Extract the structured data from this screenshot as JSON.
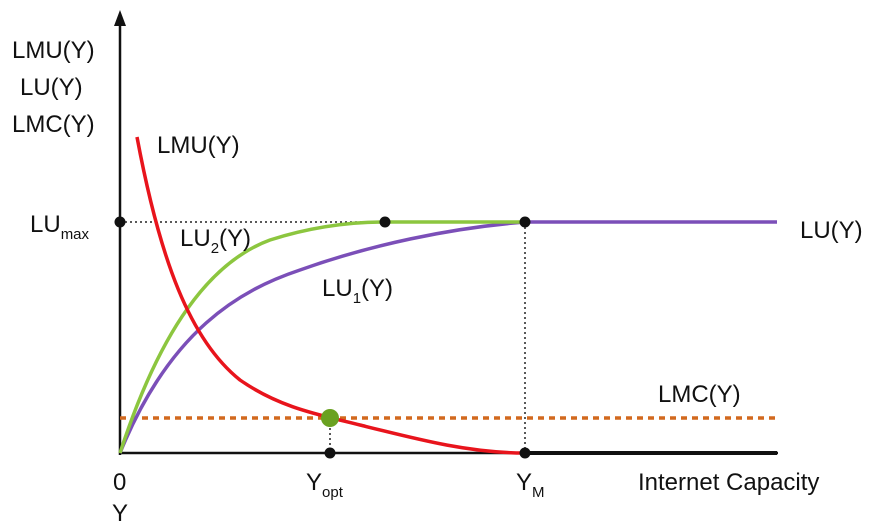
{
  "chart_data": {
    "type": "line",
    "y_axis_labels": [
      "LMU(Y)",
      "LU(Y)",
      "LMC(Y)"
    ],
    "x_axis_label": "Internet Capacity",
    "x_ticks": {
      "origin": "0",
      "origin_sub": "Y",
      "opt_main": "Y",
      "opt_sub": "opt",
      "m_main": "Y",
      "m_sub": "M"
    },
    "y_ticks": {
      "max_main": "LU",
      "max_sub": "max"
    },
    "curve_labels": {
      "lmu": "LMU(Y)",
      "lu": "LU(Y)",
      "lmc": "LMC(Y)",
      "lu1_main": "LU",
      "lu1_sub": "1",
      "lu1_tail": "(Y)",
      "lu2_main": "LU",
      "lu2_sub": "2",
      "lu2_tail": "(Y)"
    },
    "series": [
      {
        "name": "LMU(Y)",
        "color": "#e8141c"
      },
      {
        "name": "LU1(Y)",
        "color": "#7b4fb8"
      },
      {
        "name": "LU2(Y)",
        "color": "#8cc63f"
      },
      {
        "name": "LMC(Y)",
        "color": "#d2691e",
        "style": "dotted"
      }
    ],
    "colors": {
      "axis": "#111111",
      "opt_point": "#6aa121",
      "guide": "#222222"
    }
  }
}
